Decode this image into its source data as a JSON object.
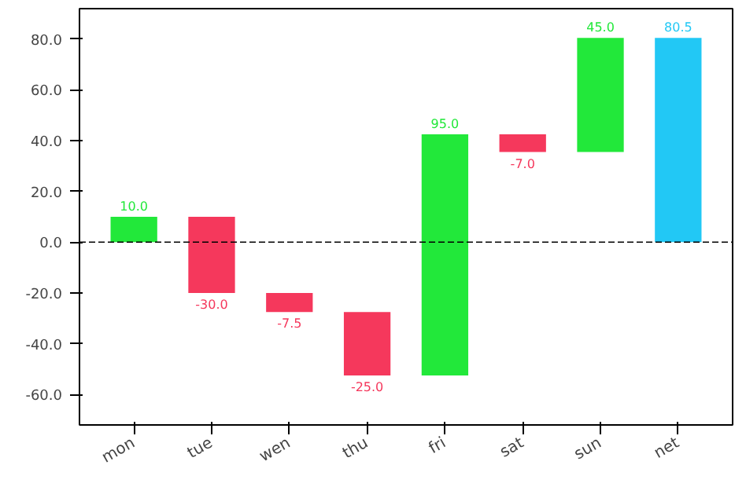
{
  "chart_data": {
    "type": "bar",
    "categories": [
      "mon",
      "tue",
      "wen",
      "thu",
      "fri",
      "sat",
      "sun",
      "net"
    ],
    "values": [
      10.0,
      -30.0,
      -7.5,
      -25.0,
      95.0,
      -7.0,
      45.0,
      80.5
    ],
    "base": [
      0,
      10.0,
      -20.0,
      -27.5,
      -52.5,
      42.5,
      35.5,
      0
    ],
    "colors": [
      "#22e83a",
      "#f5385c",
      "#f5385c",
      "#f5385c",
      "#22e83a",
      "#f5385c",
      "#22e83a",
      "#22c8f5"
    ],
    "value_labels": [
      "10.0",
      "-30.0",
      "-7.5",
      "-25.0",
      "95.0",
      "-7.0",
      "45.0",
      "80.5"
    ],
    "ylim": [
      -72,
      92
    ],
    "yticks": [
      {
        "value": -60,
        "label": "-60.0"
      },
      {
        "value": -40,
        "label": "-40.0"
      },
      {
        "value": -20,
        "label": "-20.0"
      },
      {
        "value": 0,
        "label": "0.0"
      },
      {
        "value": 20,
        "label": "20.0"
      },
      {
        "value": 40,
        "label": "40.0"
      },
      {
        "value": 60,
        "label": "60.0"
      },
      {
        "value": 80,
        "label": "80.0"
      }
    ],
    "ref_lines": [
      {
        "axis": "y",
        "value": 0,
        "label": null,
        "color": "#000000",
        "line_style": "dashed"
      }
    ],
    "grid": false
  }
}
